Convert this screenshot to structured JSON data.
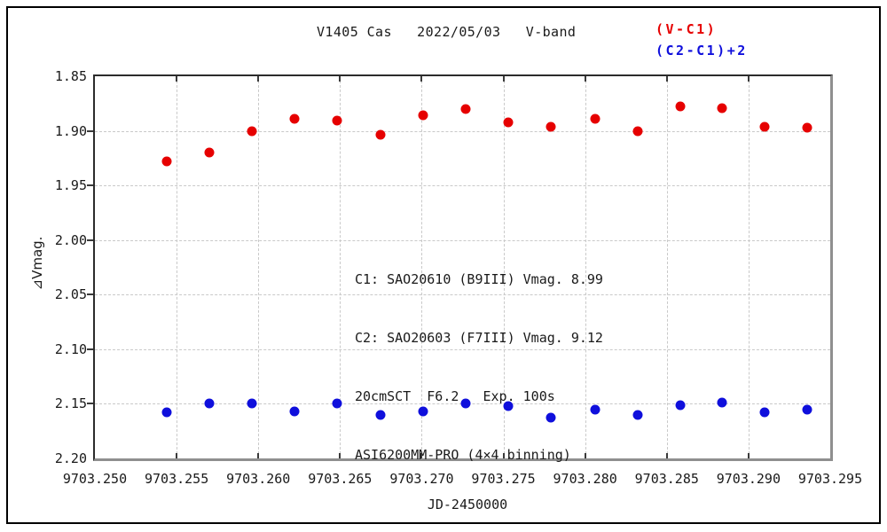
{
  "title": "V1405 Cas   2022/05/03   V-band",
  "legend": {
    "series1": {
      "label": "(V-C1)",
      "color": "#e60000"
    },
    "series2": {
      "label": "(C2-C1)+2",
      "color": "#0f0fdc"
    }
  },
  "annotation": {
    "line1": "C1: SAO20610 (B9III) Vmag. 8.99",
    "line2": "C2: SAO20603 (F7III) Vmag. 9.12",
    "line3": "20cmSCT  F6.2   Exp. 100s",
    "line4": "ASI6200MM-PRO (4×4 binning)"
  },
  "chart_data": {
    "type": "scatter",
    "title": "V1405 Cas 2022/05/03 V-band",
    "xlabel": "JD-2450000",
    "ylabel": "⊿Vmag.",
    "xlim": [
      9703.25,
      9703.295
    ],
    "ylim": [
      2.2,
      1.85
    ],
    "y_axis_inverted": true,
    "grid": "dashed",
    "legend_position": "top-right",
    "x_tick_labels": [
      "9703.250",
      "9703.255",
      "9703.260",
      "9703.265",
      "9703.270",
      "9703.275",
      "9703.280",
      "9703.285",
      "9703.290",
      "9703.295"
    ],
    "y_tick_labels": [
      "1.85",
      "1.90",
      "1.95",
      "2.00",
      "2.05",
      "2.10",
      "2.15",
      "2.20"
    ],
    "series": [
      {
        "name": "(V-C1)",
        "color": "#e60000",
        "marker": "filled-circle",
        "x": [
          9703.2544,
          9703.257,
          9703.2596,
          9703.2622,
          9703.2648,
          9703.2675,
          9703.2701,
          9703.2727,
          9703.2753,
          9703.2779,
          9703.2806,
          9703.2832,
          9703.2858,
          9703.2884,
          9703.291,
          9703.2936
        ],
        "y": [
          1.928,
          1.92,
          1.9,
          1.889,
          1.891,
          1.904,
          1.886,
          1.88,
          1.892,
          1.896,
          1.889,
          1.9,
          1.878,
          1.879,
          1.896,
          1.897
        ]
      },
      {
        "name": "(C2-C1)+2",
        "color": "#0f0fdc",
        "marker": "filled-circle",
        "x": [
          9703.2544,
          9703.257,
          9703.2596,
          9703.2622,
          9703.2648,
          9703.2675,
          9703.2701,
          9703.2727,
          9703.2753,
          9703.2779,
          9703.2806,
          9703.2832,
          9703.2858,
          9703.2884,
          9703.291,
          9703.2936
        ],
        "y": [
          2.158,
          2.15,
          2.15,
          2.157,
          2.15,
          2.16,
          2.157,
          2.15,
          2.152,
          2.163,
          2.155,
          2.16,
          2.151,
          2.149,
          2.158,
          2.155
        ]
      }
    ]
  }
}
